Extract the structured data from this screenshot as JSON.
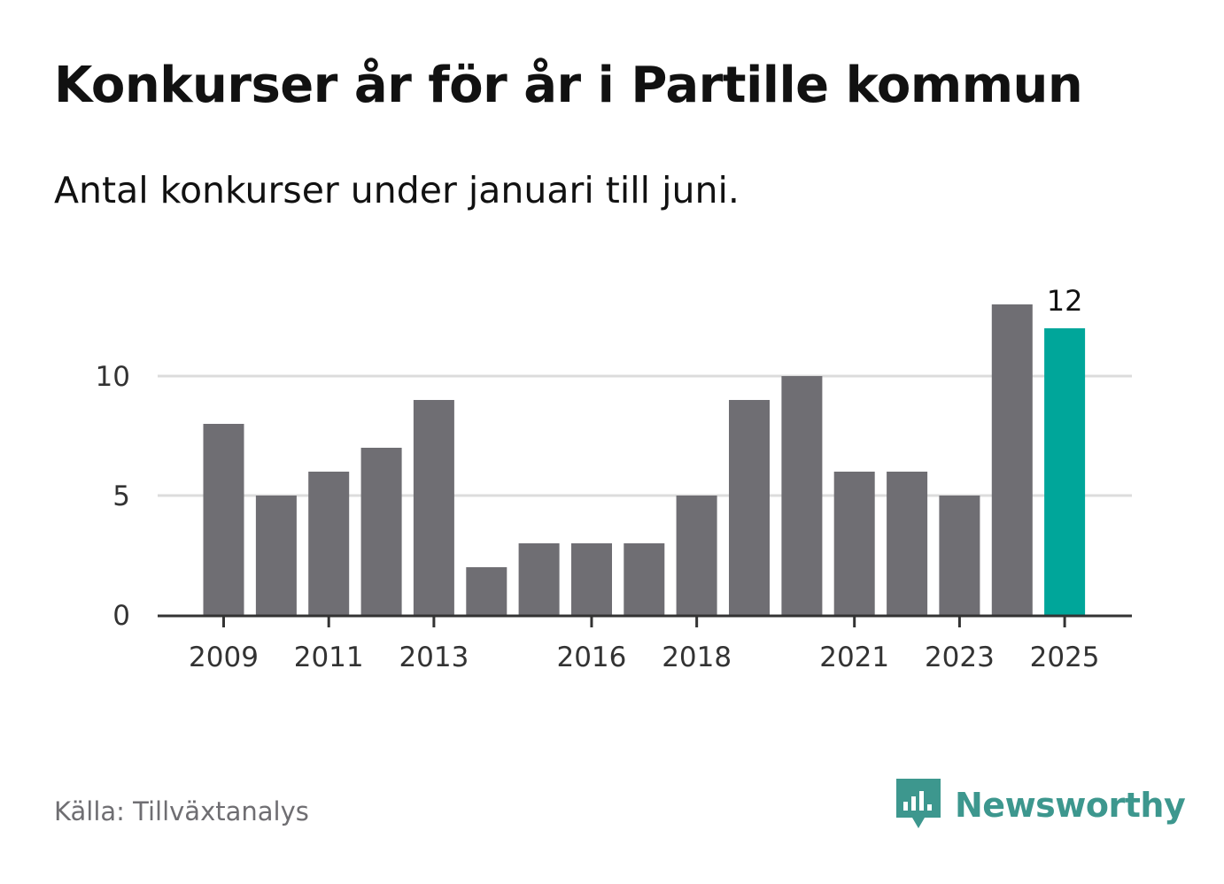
{
  "title": "Konkurser år för år i Partille kommun",
  "subtitle": "Antal konkurser under januari till juni.",
  "source": "Källa: Tillväxtanalys",
  "brand": {
    "name": "Newsworthy",
    "icon": "newsworthy-logo-icon",
    "color": "#3d978e"
  },
  "colors": {
    "bar": "#6f6e73",
    "highlight": "#00a69a",
    "grid": "#dcdcdc",
    "axis": "#333333"
  },
  "chart_data": {
    "type": "bar",
    "title": "Konkurser år för år i Partille kommun",
    "subtitle": "Antal konkurser under januari till juni.",
    "xlabel": "",
    "ylabel": "",
    "categories": [
      "2009",
      "2010",
      "2011",
      "2012",
      "2013",
      "2014",
      "2015",
      "2016",
      "2017",
      "2018",
      "2019",
      "2020",
      "2021",
      "2022",
      "2023",
      "2024",
      "2025"
    ],
    "values": [
      8,
      5,
      6,
      7,
      9,
      2,
      3,
      3,
      3,
      5,
      9,
      10,
      6,
      6,
      5,
      13,
      12
    ],
    "x_tick_labels": [
      "2009",
      "2011",
      "2013",
      "2016",
      "2018",
      "2021",
      "2023",
      "2025"
    ],
    "y_ticks": [
      0,
      5,
      10
    ],
    "ylim": [
      0,
      13
    ],
    "grid": true,
    "highlight_category": "2025",
    "data_labels": [
      {
        "category": "2025",
        "text": "12"
      }
    ]
  }
}
